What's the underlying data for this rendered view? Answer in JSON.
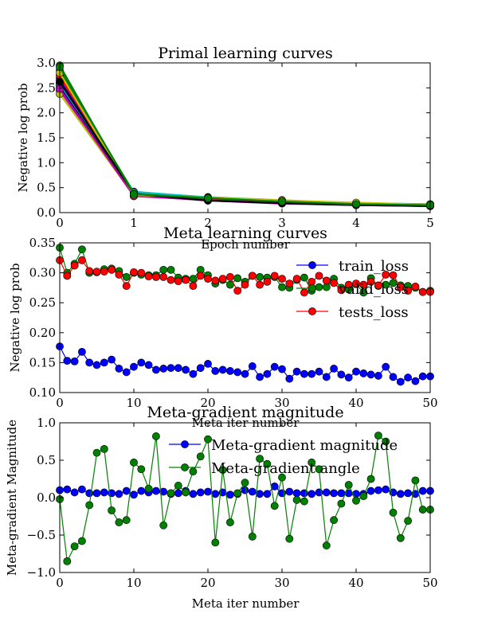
{
  "chart_data": [
    {
      "type": "line",
      "title": "Primal learning curves",
      "xlabel": "Epoch number",
      "ylabel": "Negative log prob",
      "xlim": [
        0,
        5
      ],
      "ylim": [
        0.0,
        3.0
      ],
      "xticks": [
        "0",
        "1",
        "2",
        "3",
        "4",
        "5"
      ],
      "yticks": [
        "0.0",
        "0.5",
        "1.0",
        "1.5",
        "2.0",
        "2.5",
        "3.0"
      ],
      "x": [
        0,
        1,
        2,
        3,
        4,
        5
      ],
      "grid": false,
      "legend": false,
      "series": [
        {
          "color": "#0000ff",
          "values": [
            2.55,
            0.36,
            0.25,
            0.19,
            0.16,
            0.14
          ]
        },
        {
          "color": "#008000",
          "values": [
            2.95,
            0.33,
            0.28,
            0.22,
            0.17,
            0.15
          ]
        },
        {
          "color": "#ff0000",
          "values": [
            2.7,
            0.38,
            0.27,
            0.21,
            0.18,
            0.16
          ]
        },
        {
          "color": "#00bfbf",
          "values": [
            2.6,
            0.42,
            0.3,
            0.23,
            0.18,
            0.15
          ]
        },
        {
          "color": "#bf00bf",
          "values": [
            2.45,
            0.35,
            0.24,
            0.18,
            0.15,
            0.13
          ]
        },
        {
          "color": "#bfbf00",
          "values": [
            2.38,
            0.34,
            0.31,
            0.25,
            0.19,
            0.14
          ]
        },
        {
          "color": "#000000",
          "values": [
            2.5,
            0.37,
            0.26,
            0.2,
            0.17,
            0.15
          ]
        },
        {
          "color": "#0000ff",
          "values": [
            2.65,
            0.39,
            0.28,
            0.22,
            0.18,
            0.16
          ]
        },
        {
          "color": "#008000",
          "values": [
            2.85,
            0.4,
            0.29,
            0.23,
            0.19,
            0.16
          ]
        },
        {
          "color": "#ff0000",
          "values": [
            2.75,
            0.36,
            0.27,
            0.21,
            0.17,
            0.15
          ]
        },
        {
          "color": "#00bfbf",
          "values": [
            2.58,
            0.41,
            0.31,
            0.24,
            0.19,
            0.17
          ]
        },
        {
          "color": "#bf00bf",
          "values": [
            2.48,
            0.33,
            0.25,
            0.19,
            0.16,
            0.14
          ]
        },
        {
          "color": "#bfbf00",
          "values": [
            2.8,
            0.35,
            0.3,
            0.24,
            0.2,
            0.16
          ]
        },
        {
          "color": "#000000",
          "values": [
            2.62,
            0.38,
            0.24,
            0.19,
            0.15,
            0.13
          ]
        },
        {
          "color": "#008000",
          "values": [
            2.92,
            0.37,
            0.29,
            0.22,
            0.17,
            0.15
          ]
        }
      ]
    },
    {
      "type": "line",
      "title": "Meta learning curves",
      "xlabel": "Meta iter number",
      "ylabel": "Negative log prob",
      "xlim": [
        0,
        50
      ],
      "ylim": [
        0.1,
        0.35
      ],
      "xticks": [
        "0",
        "10",
        "20",
        "30",
        "40",
        "50"
      ],
      "yticks": [
        "0.10",
        "0.15",
        "0.20",
        "0.25",
        "0.30",
        "0.35"
      ],
      "legend_position": "upper-right",
      "grid": false,
      "series": [
        {
          "name": "train_loss",
          "color": "#0000ff",
          "values": [
            0.177,
            0.153,
            0.152,
            0.168,
            0.15,
            0.146,
            0.15,
            0.155,
            0.14,
            0.134,
            0.143,
            0.15,
            0.146,
            0.138,
            0.14,
            0.141,
            0.141,
            0.138,
            0.131,
            0.141,
            0.148,
            0.136,
            0.138,
            0.136,
            0.134,
            0.131,
            0.144,
            0.126,
            0.131,
            0.143,
            0.139,
            0.123,
            0.135,
            0.131,
            0.131,
            0.135,
            0.126,
            0.14,
            0.13,
            0.125,
            0.135,
            0.132,
            0.13,
            0.128,
            0.143,
            0.126,
            0.118,
            0.125,
            0.119,
            0.127,
            0.127
          ]
        },
        {
          "name": "valid_loss",
          "color": "#008000",
          "values": [
            0.342,
            0.3,
            0.315,
            0.339,
            0.3,
            0.301,
            0.306,
            0.307,
            0.303,
            0.293,
            0.3,
            0.297,
            0.296,
            0.296,
            0.305,
            0.305,
            0.292,
            0.29,
            0.29,
            0.305,
            0.296,
            0.282,
            0.288,
            0.28,
            0.291,
            0.285,
            0.295,
            0.293,
            0.292,
            0.293,
            0.276,
            0.275,
            0.288,
            0.292,
            0.27,
            0.276,
            0.276,
            0.29,
            0.275,
            0.272,
            0.281,
            0.267,
            0.291,
            0.278,
            0.28,
            0.283,
            0.279,
            0.278,
            0.275,
            0.268,
            0.27
          ]
        },
        {
          "name": "tests_loss",
          "color": "#ff0000",
          "values": [
            0.321,
            0.295,
            0.312,
            0.321,
            0.303,
            0.302,
            0.302,
            0.305,
            0.297,
            0.278,
            0.301,
            0.3,
            0.294,
            0.293,
            0.293,
            0.288,
            0.286,
            0.288,
            0.278,
            0.295,
            0.29,
            0.287,
            0.29,
            0.293,
            0.27,
            0.28,
            0.295,
            0.28,
            0.285,
            0.295,
            0.29,
            0.282,
            0.29,
            0.267,
            0.285,
            0.295,
            0.287,
            0.283,
            0.271,
            0.28,
            0.282,
            0.28,
            0.285,
            0.279,
            0.297,
            0.296,
            0.276,
            0.27,
            0.277,
            0.268,
            0.268
          ]
        }
      ]
    },
    {
      "type": "line",
      "title": "Meta-gradient magnitude",
      "xlabel": "Meta iter number",
      "ylabel": "Meta-gradient Magnitude",
      "xlim": [
        0,
        50
      ],
      "ylim": [
        -1.0,
        1.0
      ],
      "xticks": [
        "0",
        "10",
        "20",
        "30",
        "40",
        "50"
      ],
      "yticks": [
        "−1.0",
        "−0.5",
        "0.0",
        "0.5",
        "1.0"
      ],
      "legend_position": "upper-right",
      "grid": false,
      "series": [
        {
          "name": "Meta-gradient magnitude",
          "color": "#0000ff",
          "values": [
            0.1,
            0.11,
            0.07,
            0.11,
            0.06,
            0.06,
            0.07,
            0.06,
            0.05,
            0.09,
            0.04,
            0.09,
            0.07,
            0.09,
            0.08,
            0.05,
            0.06,
            0.09,
            0.05,
            0.07,
            0.08,
            0.05,
            0.07,
            0.04,
            0.05,
            0.1,
            0.08,
            0.05,
            0.05,
            0.15,
            0.06,
            0.08,
            0.06,
            0.06,
            0.05,
            0.07,
            0.07,
            0.06,
            0.06,
            0.06,
            0.05,
            0.05,
            0.09,
            0.1,
            0.11,
            0.07,
            0.05,
            0.06,
            0.05,
            0.09,
            0.09
          ]
        },
        {
          "name": "Meta-gradient angle",
          "color": "#008000",
          "values": [
            -0.02,
            -0.85,
            -0.65,
            -0.58,
            -0.1,
            0.6,
            0.65,
            -0.17,
            -0.33,
            -0.3,
            0.47,
            0.38,
            0.12,
            0.82,
            -0.37,
            0.06,
            0.16,
            0.07,
            0.35,
            0.55,
            0.78,
            -0.6,
            0.37,
            -0.33,
            0.06,
            0.2,
            -0.52,
            0.52,
            0.45,
            -0.11,
            0.27,
            -0.55,
            -0.03,
            -0.05,
            0.47,
            0.38,
            -0.64,
            -0.3,
            -0.08,
            0.17,
            -0.04,
            0.02,
            0.25,
            0.83,
            0.75,
            -0.2,
            -0.54,
            -0.31,
            0.23,
            -0.16,
            -0.16
          ]
        }
      ]
    }
  ]
}
